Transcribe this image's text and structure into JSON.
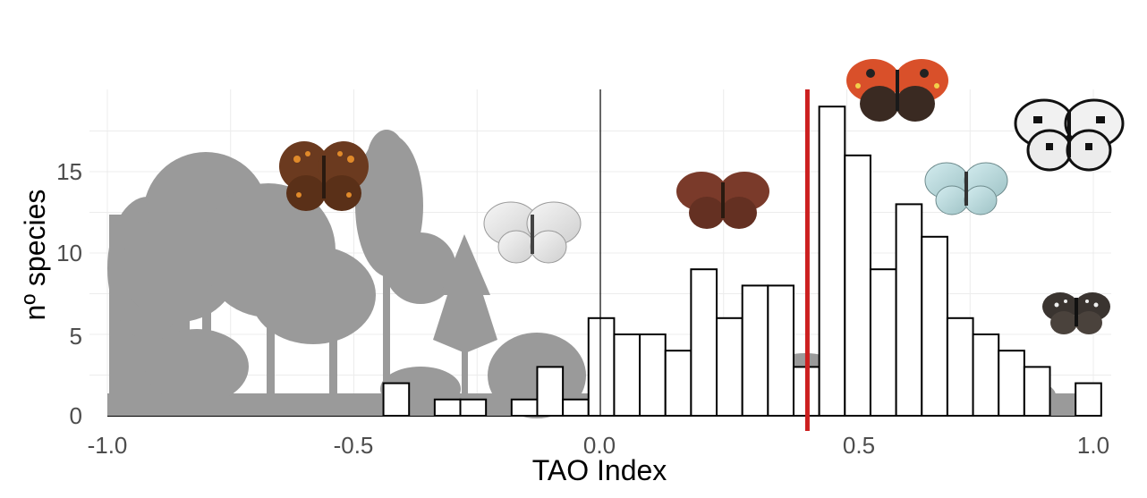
{
  "chart_data": {
    "type": "bar",
    "subtype": "histogram",
    "xlabel": "TAO Index",
    "ylabel": "nº species",
    "xlim": [
      -1.0,
      1.0
    ],
    "ylim": [
      0,
      20
    ],
    "x_ticks": [
      "-1.0",
      "-0.5",
      "0.0",
      "0.5",
      "1.0"
    ],
    "y_ticks": [
      "0",
      "5",
      "10",
      "15"
    ],
    "bin_width": 0.052,
    "bins": [
      {
        "start": -0.44,
        "end": -0.388,
        "count": 2
      },
      {
        "start": -0.336,
        "end": -0.284,
        "count": 1
      },
      {
        "start": -0.284,
        "end": -0.232,
        "count": 1
      },
      {
        "start": -0.18,
        "end": -0.128,
        "count": 1
      },
      {
        "start": -0.128,
        "end": -0.076,
        "count": 3
      },
      {
        "start": -0.076,
        "end": -0.024,
        "count": 1
      },
      {
        "start": -0.024,
        "end": 0.028,
        "count": 6
      },
      {
        "start": 0.028,
        "end": 0.08,
        "count": 5
      },
      {
        "start": 0.08,
        "end": 0.132,
        "count": 5
      },
      {
        "start": 0.132,
        "end": 0.184,
        "count": 4
      },
      {
        "start": 0.184,
        "end": 0.236,
        "count": 9
      },
      {
        "start": 0.236,
        "end": 0.288,
        "count": 6
      },
      {
        "start": 0.288,
        "end": 0.34,
        "count": 8
      },
      {
        "start": 0.34,
        "end": 0.392,
        "count": 8
      },
      {
        "start": 0.392,
        "end": 0.444,
        "count": 3
      },
      {
        "start": 0.444,
        "end": 0.496,
        "count": 19
      },
      {
        "start": 0.496,
        "end": 0.548,
        "count": 16
      },
      {
        "start": 0.548,
        "end": 0.6,
        "count": 9
      },
      {
        "start": 0.6,
        "end": 0.652,
        "count": 13
      },
      {
        "start": 0.652,
        "end": 0.704,
        "count": 11
      },
      {
        "start": 0.704,
        "end": 0.756,
        "count": 6
      },
      {
        "start": 0.756,
        "end": 0.808,
        "count": 5
      },
      {
        "start": 0.808,
        "end": 0.86,
        "count": 4
      },
      {
        "start": 0.86,
        "end": 0.912,
        "count": 3
      },
      {
        "start": 0.964,
        "end": 1.016,
        "count": 2
      }
    ],
    "reference_lines": [
      {
        "x": 0.0,
        "color": "#000000"
      },
      {
        "x": 0.42,
        "color": "#cc1f1f"
      }
    ],
    "grid": true,
    "background_illustration": "grey tree and shrub silhouettes",
    "butterfly_illustrations": [
      {
        "species_look": "brown-orange-spotted",
        "near_x": -0.55
      },
      {
        "species_look": "white",
        "near_x": -0.14
      },
      {
        "species_look": "brown",
        "near_x": 0.26
      },
      {
        "species_look": "orange-tortoiseshell",
        "near_x": 0.6
      },
      {
        "species_look": "pale-blue",
        "near_x": 0.77
      },
      {
        "species_look": "black-white-marbled",
        "near_x": 0.91
      },
      {
        "species_look": "dark-checkered",
        "near_x": 0.93
      }
    ]
  },
  "colors": {
    "bar_fill": "#ffffff",
    "bar_stroke": "#000000",
    "threshold_line": "#cc1f1f",
    "silhouette": "#9a9a9a",
    "grid": "#ececec"
  }
}
